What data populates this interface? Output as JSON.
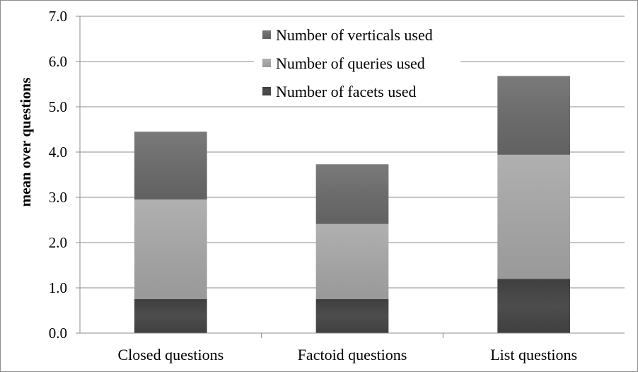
{
  "chart_data": {
    "type": "bar",
    "stacked": true,
    "categories": [
      "Closed questions",
      "Factoid questions",
      "List questions"
    ],
    "series": [
      {
        "name": "Number of facets used",
        "values": [
          0.75,
          0.75,
          1.2
        ],
        "color": "#454545"
      },
      {
        "name": "Number of queries used",
        "values": [
          2.2,
          1.66,
          2.74
        ],
        "color": "#a9a9a9"
      },
      {
        "name": "Number of verticals used",
        "values": [
          1.5,
          1.32,
          1.74
        ],
        "color": "#6e6e6e"
      }
    ],
    "legend_order": [
      "Number of verticals used",
      "Number of queries used",
      "Number of facets used"
    ],
    "title": "",
    "xlabel": "",
    "ylabel": "mean over questions",
    "ylim": [
      0,
      7
    ],
    "ytick_step": 1,
    "ytick_format": "0.0",
    "grid": true,
    "legend_position": "top-center"
  }
}
